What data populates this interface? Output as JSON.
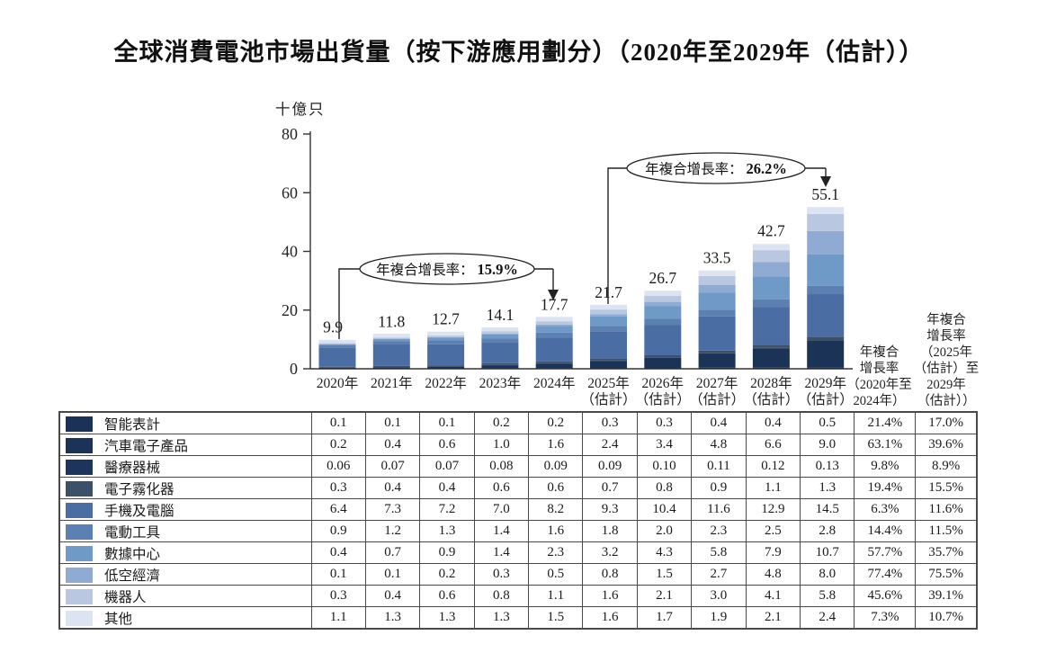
{
  "page": {
    "title": "全球消費電池市場出貨量（按下游應用劃分）（2020年至2029年（估計））"
  },
  "chart_data": {
    "type": "bar",
    "stacked": true,
    "title": "全球消費電池市場出貨量（按下游應用劃分）（2020年至2029年（估計））",
    "ylabel": "十億只",
    "xlabel": "",
    "ylim": [
      0,
      80
    ],
    "yticks": [
      "0",
      "20",
      "40",
      "60",
      "80"
    ],
    "grid": false,
    "legend_position": "table-left",
    "categories": [
      "2020年",
      "2021年",
      "2022年",
      "2023年",
      "2024年",
      "2025年",
      "2026年",
      "2027年",
      "2028年",
      "2029年"
    ],
    "estimate_suffix": "（估計）",
    "estimate_from_index": 5,
    "totals": [
      "9.9",
      "11.8",
      "12.7",
      "14.1",
      "17.7",
      "21.7",
      "26.7",
      "33.5",
      "42.7",
      "55.1"
    ],
    "series": [
      {
        "name": "智能表計",
        "color": "#1b3157",
        "values": [
          "0.1",
          "0.1",
          "0.1",
          "0.2",
          "0.2",
          "0.3",
          "0.3",
          "0.4",
          "0.4",
          "0.5"
        ],
        "cagr_2020_2024": "21.4%",
        "cagr_2025_2029": "17.0%"
      },
      {
        "name": "汽車電子產品",
        "color": "#1c3358",
        "values": [
          "0.2",
          "0.4",
          "0.6",
          "1.0",
          "1.6",
          "2.4",
          "3.4",
          "4.8",
          "6.6",
          "9.0"
        ],
        "cagr_2020_2024": "63.1%",
        "cagr_2025_2029": "39.6%"
      },
      {
        "name": "醫療器械",
        "color": "#1d345c",
        "values": [
          "0.06",
          "0.07",
          "0.07",
          "0.08",
          "0.09",
          "0.09",
          "0.10",
          "0.11",
          "0.12",
          "0.13"
        ],
        "cagr_2020_2024": "9.8%",
        "cagr_2025_2029": "8.9%"
      },
      {
        "name": "電子霧化器",
        "color": "#3c5069",
        "values": [
          "0.3",
          "0.4",
          "0.4",
          "0.6",
          "0.6",
          "0.7",
          "0.8",
          "0.9",
          "1.1",
          "1.3"
        ],
        "cagr_2020_2024": "19.4%",
        "cagr_2025_2029": "15.5%"
      },
      {
        "name": "手機及電腦",
        "color": "#4a6da4",
        "values": [
          "6.4",
          "7.3",
          "7.2",
          "7.0",
          "8.2",
          "9.3",
          "10.4",
          "11.6",
          "12.9",
          "14.5"
        ],
        "cagr_2020_2024": "6.3%",
        "cagr_2025_2029": "11.6%"
      },
      {
        "name": "電動工具",
        "color": "#5d80b2",
        "values": [
          "0.9",
          "1.2",
          "1.3",
          "1.4",
          "1.6",
          "1.8",
          "2.0",
          "2.3",
          "2.5",
          "2.8"
        ],
        "cagr_2020_2024": "14.4%",
        "cagr_2025_2029": "11.5%"
      },
      {
        "name": "數據中心",
        "color": "#6f9ac8",
        "values": [
          "0.4",
          "0.7",
          "0.9",
          "1.4",
          "2.3",
          "3.2",
          "4.3",
          "5.8",
          "7.9",
          "10.7"
        ],
        "cagr_2020_2024": "57.7%",
        "cagr_2025_2029": "35.7%"
      },
      {
        "name": "低空經濟",
        "color": "#8fabd3",
        "values": [
          "0.1",
          "0.1",
          "0.2",
          "0.3",
          "0.5",
          "0.8",
          "1.5",
          "2.7",
          "4.8",
          "8.0"
        ],
        "cagr_2020_2024": "77.4%",
        "cagr_2025_2029": "75.5%"
      },
      {
        "name": "機器人",
        "color": "#b9c7e0",
        "values": [
          "0.3",
          "0.4",
          "0.6",
          "0.8",
          "1.1",
          "1.6",
          "2.1",
          "3.0",
          "4.1",
          "5.8"
        ],
        "cagr_2020_2024": "45.6%",
        "cagr_2025_2029": "39.1%"
      },
      {
        "name": "其他",
        "color": "#dde4f1",
        "values": [
          "1.1",
          "1.3",
          "1.3",
          "1.3",
          "1.5",
          "1.6",
          "1.7",
          "1.9",
          "2.1",
          "2.4"
        ],
        "cagr_2020_2024": "7.3%",
        "cagr_2025_2029": "10.7%"
      }
    ],
    "annotations": [
      {
        "label": "年複合增長率：",
        "value": "15.9%"
      },
      {
        "label": "年複合增長率：",
        "value": "26.2%"
      }
    ]
  },
  "cagr_headers": {
    "col1_lines": [
      "年複合",
      "增長率",
      "（2020年至",
      "2024年）"
    ],
    "col2_lines": [
      "年複合",
      "增長率",
      "（2025年",
      "（估計）至",
      "2029年",
      "（估計））"
    ]
  }
}
